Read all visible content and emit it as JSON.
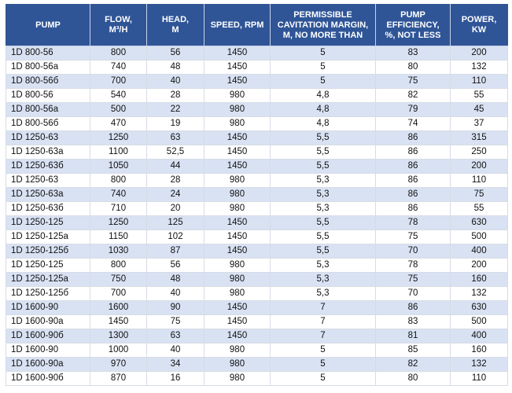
{
  "colors": {
    "header_bg": "#2F5597",
    "header_text": "#FFFFFF",
    "band_row": "#D9E2F3",
    "row": "#FFFFFF",
    "grid": "#D7DCE5",
    "text": "#111111"
  },
  "table": {
    "columns": [
      {
        "key": "pump",
        "label": "PUMP"
      },
      {
        "key": "flow",
        "label": "FLOW,\nM³/H"
      },
      {
        "key": "head",
        "label": "HEAD,\nM"
      },
      {
        "key": "speed",
        "label": "SPEED, RPM"
      },
      {
        "key": "cavitation",
        "label": "PERMISSIBLE\nCAVITATION MARGIN,\nM, NO MORE THAN"
      },
      {
        "key": "efficiency",
        "label": "PUMP\nEFFICIENCY,\n%, NOT LESS"
      },
      {
        "key": "power",
        "label": "POWER,\nKW"
      }
    ],
    "rows": [
      [
        "1D 800-56",
        "800",
        "56",
        "1450",
        "5",
        "83",
        "200"
      ],
      [
        "1D 800-56a",
        "740",
        "48",
        "1450",
        "5",
        "80",
        "132"
      ],
      [
        "1D 800-56б",
        "700",
        "40",
        "1450",
        "5",
        "75",
        "110"
      ],
      [
        "1D 800-56",
        "540",
        "28",
        "980",
        "4,8",
        "82",
        "55"
      ],
      [
        "1D 800-56a",
        "500",
        "22",
        "980",
        "4,8",
        "79",
        "45"
      ],
      [
        "1D 800-56б",
        "470",
        "19",
        "980",
        "4,8",
        "74",
        "37"
      ],
      [
        "1D 1250-63",
        "1250",
        "63",
        "1450",
        "5,5",
        "86",
        "315"
      ],
      [
        "1D 1250-63a",
        "1100",
        "52,5",
        "1450",
        "5,5",
        "86",
        "250"
      ],
      [
        "1D 1250-63б",
        "1050",
        "44",
        "1450",
        "5,5",
        "86",
        "200"
      ],
      [
        "1D 1250-63",
        "800",
        "28",
        "980",
        "5,3",
        "86",
        "110"
      ],
      [
        "1D 1250-63a",
        "740",
        "24",
        "980",
        "5,3",
        "86",
        "75"
      ],
      [
        "1D 1250-63б",
        "710",
        "20",
        "980",
        "5,3",
        "86",
        "55"
      ],
      [
        "1D 1250-125",
        "1250",
        "125",
        "1450",
        "5,5",
        "78",
        "630"
      ],
      [
        "1D 1250-125a",
        "1150",
        "102",
        "1450",
        "5,5",
        "75",
        "500"
      ],
      [
        "1D 1250-125б",
        "1030",
        "87",
        "1450",
        "5,5",
        "70",
        "400"
      ],
      [
        "1D 1250-125",
        "800",
        "56",
        "980",
        "5,3",
        "78",
        "200"
      ],
      [
        "1D 1250-125a",
        "750",
        "48",
        "980",
        "5,3",
        "75",
        "160"
      ],
      [
        "1D 1250-125б",
        "700",
        "40",
        "980",
        "5,3",
        "70",
        "132"
      ],
      [
        "1D 1600-90",
        "1600",
        "90",
        "1450",
        "7",
        "86",
        "630"
      ],
      [
        "1D 1600-90a",
        "1450",
        "75",
        "1450",
        "7",
        "83",
        "500"
      ],
      [
        "1D 1600-90б",
        "1300",
        "63",
        "1450",
        "7",
        "81",
        "400"
      ],
      [
        "1D 1600-90",
        "1000",
        "40",
        "980",
        "5",
        "85",
        "160"
      ],
      [
        "1D 1600-90a",
        "970",
        "34",
        "980",
        "5",
        "82",
        "132"
      ],
      [
        "1D 1600-90б",
        "870",
        "16",
        "980",
        "5",
        "80",
        "110"
      ]
    ]
  }
}
